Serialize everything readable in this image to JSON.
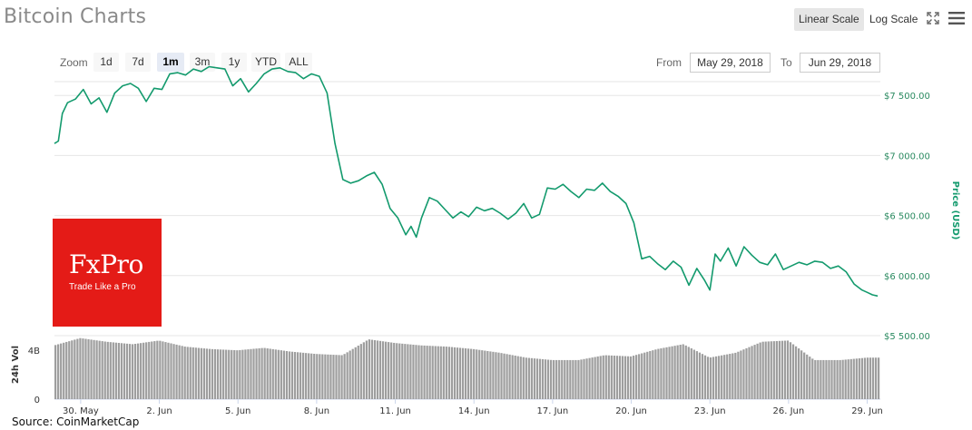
{
  "header": {
    "title": "Bitcoin Charts",
    "linear_scale_label": "Linear Scale",
    "log_scale_label": "Log Scale"
  },
  "toolbar": {
    "zoom_label": "Zoom",
    "zoom_options": [
      "1d",
      "7d",
      "1m",
      "3m",
      "1y",
      "YTD",
      "ALL"
    ],
    "active_zoom": "1m",
    "from_label": "From",
    "from_value": "May 29, 2018",
    "to_label": "To",
    "to_value": "Jun 29, 2018"
  },
  "ad": {
    "brand": "FxPro",
    "tagline": "Trade Like a Pro"
  },
  "footer": {
    "source": "Source: CoinMarketCap"
  },
  "colors": {
    "price_line": "#139a6d",
    "volume_bar": "#9e9e9e",
    "grid": "#e6e6e6",
    "ad_background": "#e41b17"
  },
  "chart_data": {
    "type": "line",
    "title": "Bitcoin Charts",
    "ylabel": "Price (USD)",
    "ylim": [
      5500,
      7600
    ],
    "yticks": [
      "$5 500.00",
      "$6 000.00",
      "$6 500.00",
      "$7 000.00",
      "$7 500.00"
    ],
    "yticks_values": [
      5500,
      6000,
      6500,
      7000,
      7500
    ],
    "xticks": [
      "30. May",
      "2. Jun",
      "5. Jun",
      "8. Jun",
      "11. Jun",
      "14. Jun",
      "17. Jun",
      "20. Jun",
      "23. Jun",
      "26. Jun",
      "29. Jun"
    ],
    "xticks_day": [
      1,
      4,
      7,
      10,
      13,
      16,
      19,
      22,
      25,
      28,
      31
    ],
    "xlim_day": [
      0,
      31.5
    ],
    "series": [
      {
        "name": "Price (USD)",
        "x_day": [
          0,
          0.15,
          0.3,
          0.5,
          0.8,
          1.1,
          1.4,
          1.7,
          2.0,
          2.3,
          2.6,
          2.9,
          3.2,
          3.5,
          3.8,
          4.1,
          4.4,
          4.7,
          5.0,
          5.3,
          5.6,
          5.9,
          6.2,
          6.5,
          6.8,
          7.1,
          7.4,
          7.7,
          8.0,
          8.3,
          8.6,
          8.9,
          9.2,
          9.5,
          9.8,
          10.1,
          10.4,
          10.7,
          11.0,
          11.3,
          11.6,
          11.9,
          12.2,
          12.5,
          12.8,
          13.1,
          13.4,
          13.6,
          13.8,
          14.0,
          14.3,
          14.6,
          14.9,
          15.2,
          15.5,
          15.8,
          16.1,
          16.4,
          16.7,
          17.0,
          17.3,
          17.6,
          17.9,
          18.2,
          18.5,
          18.8,
          19.1,
          19.4,
          19.7,
          20.0,
          20.3,
          20.6,
          20.9,
          21.2,
          21.5,
          21.8,
          22.1,
          22.4,
          22.7,
          23.0,
          23.3,
          23.6,
          23.9,
          24.2,
          24.5,
          24.8,
          25.0,
          25.2,
          25.4,
          25.7,
          26.0,
          26.3,
          26.6,
          26.9,
          27.2,
          27.5,
          27.8,
          28.1,
          28.4,
          28.7,
          29.0,
          29.3,
          29.6,
          29.9,
          30.2,
          30.5,
          30.8,
          31.0,
          31.2,
          31.4
        ],
        "values": [
          7100,
          7120,
          7350,
          7440,
          7470,
          7550,
          7430,
          7480,
          7360,
          7520,
          7580,
          7600,
          7560,
          7450,
          7560,
          7550,
          7680,
          7690,
          7670,
          7720,
          7700,
          7740,
          7730,
          7720,
          7580,
          7640,
          7530,
          7600,
          7680,
          7720,
          7730,
          7700,
          7690,
          7640,
          7680,
          7660,
          7520,
          7100,
          6800,
          6770,
          6790,
          6830,
          6860,
          6760,
          6560,
          6480,
          6340,
          6410,
          6320,
          6480,
          6650,
          6620,
          6550,
          6480,
          6530,
          6490,
          6570,
          6540,
          6560,
          6520,
          6470,
          6520,
          6600,
          6480,
          6510,
          6730,
          6720,
          6760,
          6700,
          6650,
          6720,
          6710,
          6770,
          6700,
          6660,
          6600,
          6440,
          6140,
          6160,
          6100,
          6050,
          6120,
          6070,
          5920,
          6060,
          5960,
          5880,
          6180,
          6120,
          6230,
          6080,
          6240,
          6170,
          6110,
          6090,
          6180,
          6050,
          6080,
          6110,
          6090,
          6120,
          6110,
          6060,
          6080,
          6030,
          5930,
          5880,
          5860,
          5840,
          5830
        ]
      }
    ],
    "volume_panel": {
      "label": "24h Vol",
      "yticks": [
        "0",
        "4B"
      ],
      "yticks_values": [
        0,
        4
      ],
      "ylim_billions": [
        0,
        5.2
      ],
      "x_day": [
        0,
        1,
        2,
        3,
        4,
        5,
        6,
        7,
        8,
        9,
        10,
        11,
        12,
        13,
        14,
        15,
        16,
        17,
        18,
        19,
        20,
        21,
        22,
        23,
        24,
        25,
        26,
        27,
        28,
        29,
        30,
        31
      ],
      "values_billions": [
        4.4,
        5.0,
        4.7,
        4.5,
        4.8,
        4.3,
        4.1,
        4.0,
        4.2,
        3.9,
        3.7,
        3.6,
        4.9,
        4.6,
        4.4,
        4.3,
        4.1,
        3.8,
        3.4,
        3.2,
        3.2,
        3.6,
        3.5,
        4.1,
        4.5,
        3.4,
        3.8,
        4.7,
        4.8,
        3.2,
        3.2,
        3.4
      ]
    }
  }
}
